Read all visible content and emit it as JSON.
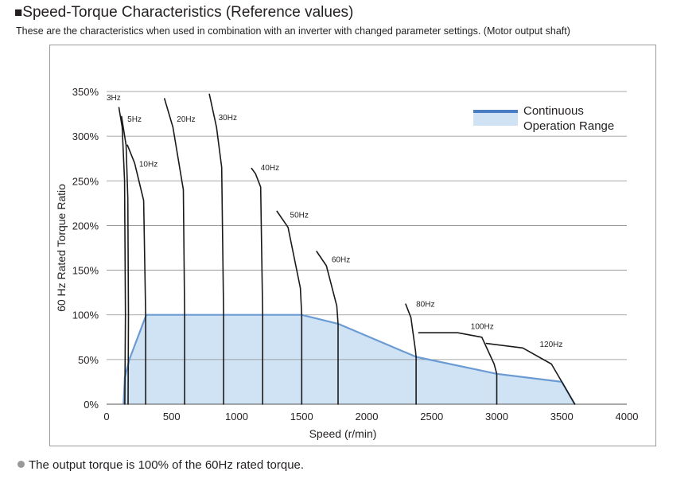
{
  "header": {
    "title_mark": "■",
    "title": "Speed-Torque Characteristics (Reference values)",
    "subtitle": "These are the characteristics when used in combination with an inverter with changed parameter settings. (Motor output shaft)"
  },
  "footer": {
    "note": "The output torque is 100% of the 60Hz rated torque."
  },
  "chart_data": {
    "type": "line",
    "xlabel": "Speed (r/min)",
    "ylabel": "60 Hz Rated Torque Ratio",
    "xlim": [
      0,
      4000
    ],
    "ylim": [
      0,
      350
    ],
    "x_ticks": [
      0,
      500,
      1000,
      1500,
      2000,
      2500,
      3000,
      3500,
      4000
    ],
    "y_ticks": [
      0,
      50,
      100,
      150,
      200,
      250,
      300,
      350
    ],
    "x_tick_labels": [
      "0",
      "500",
      "1000",
      "1500",
      "2000",
      "2500",
      "3000",
      "3500",
      "4000"
    ],
    "y_tick_labels": [
      "0%",
      "50%",
      "100%",
      "150%",
      "200%",
      "250%",
      "300%",
      "350%"
    ],
    "grid": "horizontal",
    "colors": {
      "range_fill": "#cfe3f5",
      "range_edge": "#6b9bd2",
      "legend_line": "#4a7ec4",
      "curve": "#1a1a1a",
      "grid": "#8c8c8c"
    },
    "legend": {
      "label_line1": "Continuous",
      "label_line2": "Operation Range",
      "placement": "top-right"
    },
    "continuous_range": [
      [
        130,
        0
      ],
      [
        140,
        30
      ],
      [
        175,
        50
      ],
      [
        305,
        100
      ],
      [
        1500,
        100
      ],
      [
        1780,
        90
      ],
      [
        2380,
        53
      ],
      [
        3000,
        34
      ],
      [
        3500,
        25
      ],
      [
        3600,
        0
      ]
    ],
    "series": [
      {
        "name": "3Hz",
        "points": [
          [
            95,
            332
          ],
          [
            120,
            310
          ],
          [
            138,
            250
          ],
          [
            145,
            100
          ],
          [
            140,
            0
          ]
        ]
      },
      {
        "name": "5Hz",
        "points": [
          [
            115,
            322
          ],
          [
            150,
            290
          ],
          [
            163,
            230
          ],
          [
            168,
            100
          ],
          [
            165,
            0
          ]
        ]
      },
      {
        "name": "10Hz",
        "points": [
          [
            160,
            290
          ],
          [
            215,
            270
          ],
          [
            285,
            228
          ],
          [
            300,
            100
          ],
          [
            300,
            0
          ]
        ]
      },
      {
        "name": "20Hz",
        "points": [
          [
            445,
            342
          ],
          [
            510,
            310
          ],
          [
            590,
            240
          ],
          [
            600,
            100
          ],
          [
            600,
            0
          ]
        ]
      },
      {
        "name": "30Hz",
        "points": [
          [
            790,
            347
          ],
          [
            845,
            310
          ],
          [
            885,
            265
          ],
          [
            900,
            100
          ],
          [
            900,
            0
          ]
        ]
      },
      {
        "name": "40Hz",
        "points": [
          [
            1115,
            264
          ],
          [
            1145,
            258
          ],
          [
            1185,
            243
          ],
          [
            1200,
            100
          ],
          [
            1200,
            0
          ]
        ]
      },
      {
        "name": "50Hz",
        "points": [
          [
            1310,
            216
          ],
          [
            1395,
            198
          ],
          [
            1490,
            130
          ],
          [
            1500,
            100
          ],
          [
            1500,
            0
          ]
        ]
      },
      {
        "name": "60Hz",
        "points": [
          [
            1615,
            171
          ],
          [
            1690,
            155
          ],
          [
            1770,
            110
          ],
          [
            1780,
            90
          ],
          [
            1780,
            0
          ]
        ]
      },
      {
        "name": "80Hz",
        "points": [
          [
            2300,
            112
          ],
          [
            2340,
            97
          ],
          [
            2375,
            60
          ],
          [
            2380,
            53
          ],
          [
            2380,
            0
          ]
        ]
      },
      {
        "name": "100Hz",
        "points": [
          [
            2400,
            80
          ],
          [
            2700,
            80
          ],
          [
            2885,
            75
          ],
          [
            2980,
            45
          ],
          [
            3000,
            34
          ],
          [
            3000,
            0
          ]
        ]
      },
      {
        "name": "120Hz",
        "points": [
          [
            2920,
            68
          ],
          [
            3200,
            63
          ],
          [
            3420,
            45
          ],
          [
            3500,
            25
          ],
          [
            3600,
            0
          ]
        ]
      }
    ],
    "curve_labels": [
      {
        "text": "3Hz",
        "x": 0,
        "y": 340
      },
      {
        "text": "5Hz",
        "x": 160,
        "y": 316
      },
      {
        "text": "10Hz",
        "x": 250,
        "y": 266
      },
      {
        "text": "20Hz",
        "x": 540,
        "y": 316
      },
      {
        "text": "30Hz",
        "x": 860,
        "y": 318
      },
      {
        "text": "40Hz",
        "x": 1185,
        "y": 262
      },
      {
        "text": "50Hz",
        "x": 1410,
        "y": 209
      },
      {
        "text": "60Hz",
        "x": 1730,
        "y": 159
      },
      {
        "text": "80Hz",
        "x": 2380,
        "y": 109
      },
      {
        "text": "100Hz",
        "x": 2800,
        "y": 84
      },
      {
        "text": "120Hz",
        "x": 3330,
        "y": 64
      }
    ]
  }
}
